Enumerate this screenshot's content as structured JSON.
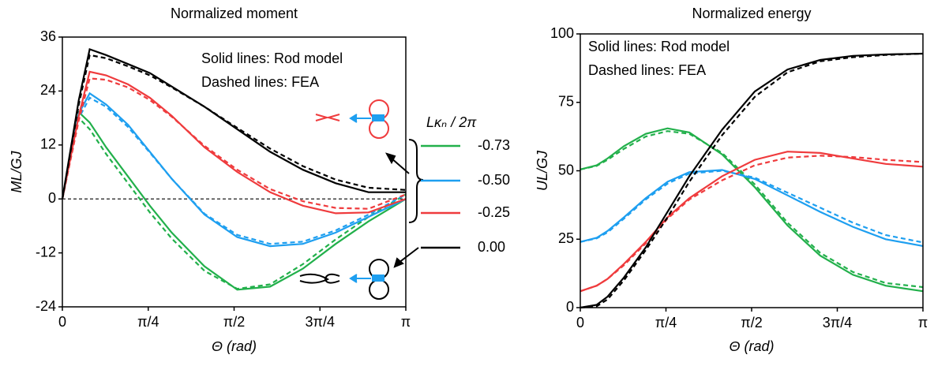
{
  "chart_data": [
    {
      "type": "line",
      "title": "Normalized moment",
      "x_label": "Θ (rad)",
      "y_label": "ML/GJ",
      "annotations": [
        "Solid lines: Rod model",
        "Dashed lines: FEA"
      ],
      "legend_title": "Lκₙ / 2π",
      "legend": true,
      "zero_line": true,
      "xlim": [
        0,
        3.14159
      ],
      "xticks": [
        0,
        {
          "value": 0.7854,
          "label": "π/4"
        },
        {
          "value": 1.5708,
          "label": "π/2"
        },
        {
          "value": 2.3562,
          "label": "3π/4"
        },
        {
          "value": 3.14159,
          "label": "π"
        }
      ],
      "ylim": [
        -24,
        36
      ],
      "yticks": [
        -24,
        -12,
        0,
        12,
        24,
        36
      ],
      "x": [
        0,
        0.15,
        0.25,
        0.4,
        0.6,
        0.8,
        1.0,
        1.3,
        1.6,
        1.9,
        2.2,
        2.5,
        2.8,
        3.14159
      ],
      "series": [
        {
          "name": "-0.73",
          "color": "#22b04b",
          "values": [
            0,
            19.3,
            17,
            11.5,
            5,
            -1.5,
            -7.5,
            -15,
            -20.2,
            -19.5,
            -15.5,
            -10,
            -5,
            0
          ],
          "fea_values": [
            0,
            18,
            15.5,
            10,
            3.5,
            -3,
            -8.8,
            -16,
            -20,
            -19,
            -14.5,
            -9,
            -4,
            1
          ]
        },
        {
          "name": "-0.50",
          "color": "#1e9ff0",
          "values": [
            0,
            19,
            23.5,
            21,
            16.5,
            10.5,
            4.5,
            -3.5,
            -8.5,
            -10.5,
            -10,
            -7.5,
            -4,
            0
          ],
          "fea_values": [
            0,
            18,
            22.5,
            20.5,
            16,
            10.3,
            4.5,
            -3.3,
            -8,
            -10,
            -9.5,
            -7,
            -3.5,
            1
          ]
        },
        {
          "name": "-0.25",
          "color": "#ef3b3d",
          "values": [
            0,
            18.5,
            28.3,
            27.5,
            25.5,
            22.5,
            18.5,
            11.5,
            6,
            1.5,
            -1.5,
            -3.2,
            -3,
            0
          ],
          "fea_values": [
            0,
            17.5,
            26.8,
            26.5,
            24.8,
            22,
            18.3,
            11.8,
            6.5,
            2.2,
            -0.5,
            -2,
            -2.2,
            1
          ]
        },
        {
          "name": "0.00",
          "color": "#000000",
          "values": [
            0,
            22,
            33.3,
            32,
            30,
            28,
            25,
            20.5,
            15.5,
            10.5,
            6.5,
            3.5,
            1.5,
            1.5
          ],
          "fea_values": [
            0,
            21,
            32,
            31.3,
            29.5,
            27.5,
            24.8,
            20.5,
            15.8,
            11.2,
            7.3,
            4.3,
            2.5,
            2
          ]
        }
      ]
    },
    {
      "type": "line",
      "title": "Normalized energy",
      "x_label": "Θ (rad)",
      "y_label": "UL/GJ",
      "annotations": [
        "Solid lines: Rod model",
        "Dashed lines: FEA"
      ],
      "xlim": [
        0,
        3.14159
      ],
      "xticks": [
        0,
        {
          "value": 0.7854,
          "label": "π/4"
        },
        {
          "value": 1.5708,
          "label": "π/2"
        },
        {
          "value": 2.3562,
          "label": "3π/4"
        },
        {
          "value": 3.14159,
          "label": "π"
        }
      ],
      "ylim": [
        0,
        100
      ],
      "yticks": [
        0,
        25,
        50,
        75,
        100
      ],
      "x": [
        0,
        0.15,
        0.25,
        0.4,
        0.6,
        0.8,
        1.0,
        1.3,
        1.6,
        1.9,
        2.2,
        2.5,
        2.8,
        3.14159
      ],
      "series": [
        {
          "color": "#22b04b",
          "values": [
            50.5,
            52,
            54.5,
            59,
            63.5,
            65.5,
            64,
            56,
            44,
            30,
            19,
            12,
            8,
            6
          ],
          "fea_values": [
            50.5,
            51.8,
            54,
            58,
            62.5,
            64.5,
            63.5,
            56.5,
            45,
            31,
            20,
            13,
            9,
            7.5
          ]
        },
        {
          "color": "#1e9ff0",
          "values": [
            24,
            25.5,
            28,
            33,
            40,
            46,
            49.5,
            50.3,
            47,
            41,
            35,
            29.5,
            25,
            22.5
          ],
          "fea_values": [
            24,
            25.3,
            27.5,
            32.5,
            39.5,
            45.3,
            49,
            50,
            47.5,
            42,
            36.5,
            31,
            26.5,
            23.8
          ]
        },
        {
          "color": "#ef3b3d",
          "values": [
            6,
            8,
            10.5,
            16,
            24,
            33,
            40,
            48,
            54,
            57,
            56.5,
            54.5,
            52.5,
            51.5
          ],
          "fea_values": [
            6,
            8,
            10.5,
            15.5,
            23.5,
            32.5,
            39.5,
            46.5,
            52,
            54.8,
            55.5,
            55,
            54,
            53.2
          ]
        },
        {
          "color": "#000000",
          "values": [
            0,
            1,
            4,
            11,
            22,
            35,
            48,
            65,
            79,
            87,
            90.5,
            92,
            92.5,
            92.8
          ],
          "fea_values": [
            0,
            0.5,
            3,
            10,
            21,
            33,
            46,
            63,
            77,
            86,
            90,
            91.5,
            92.3,
            92.8
          ]
        }
      ]
    }
  ]
}
